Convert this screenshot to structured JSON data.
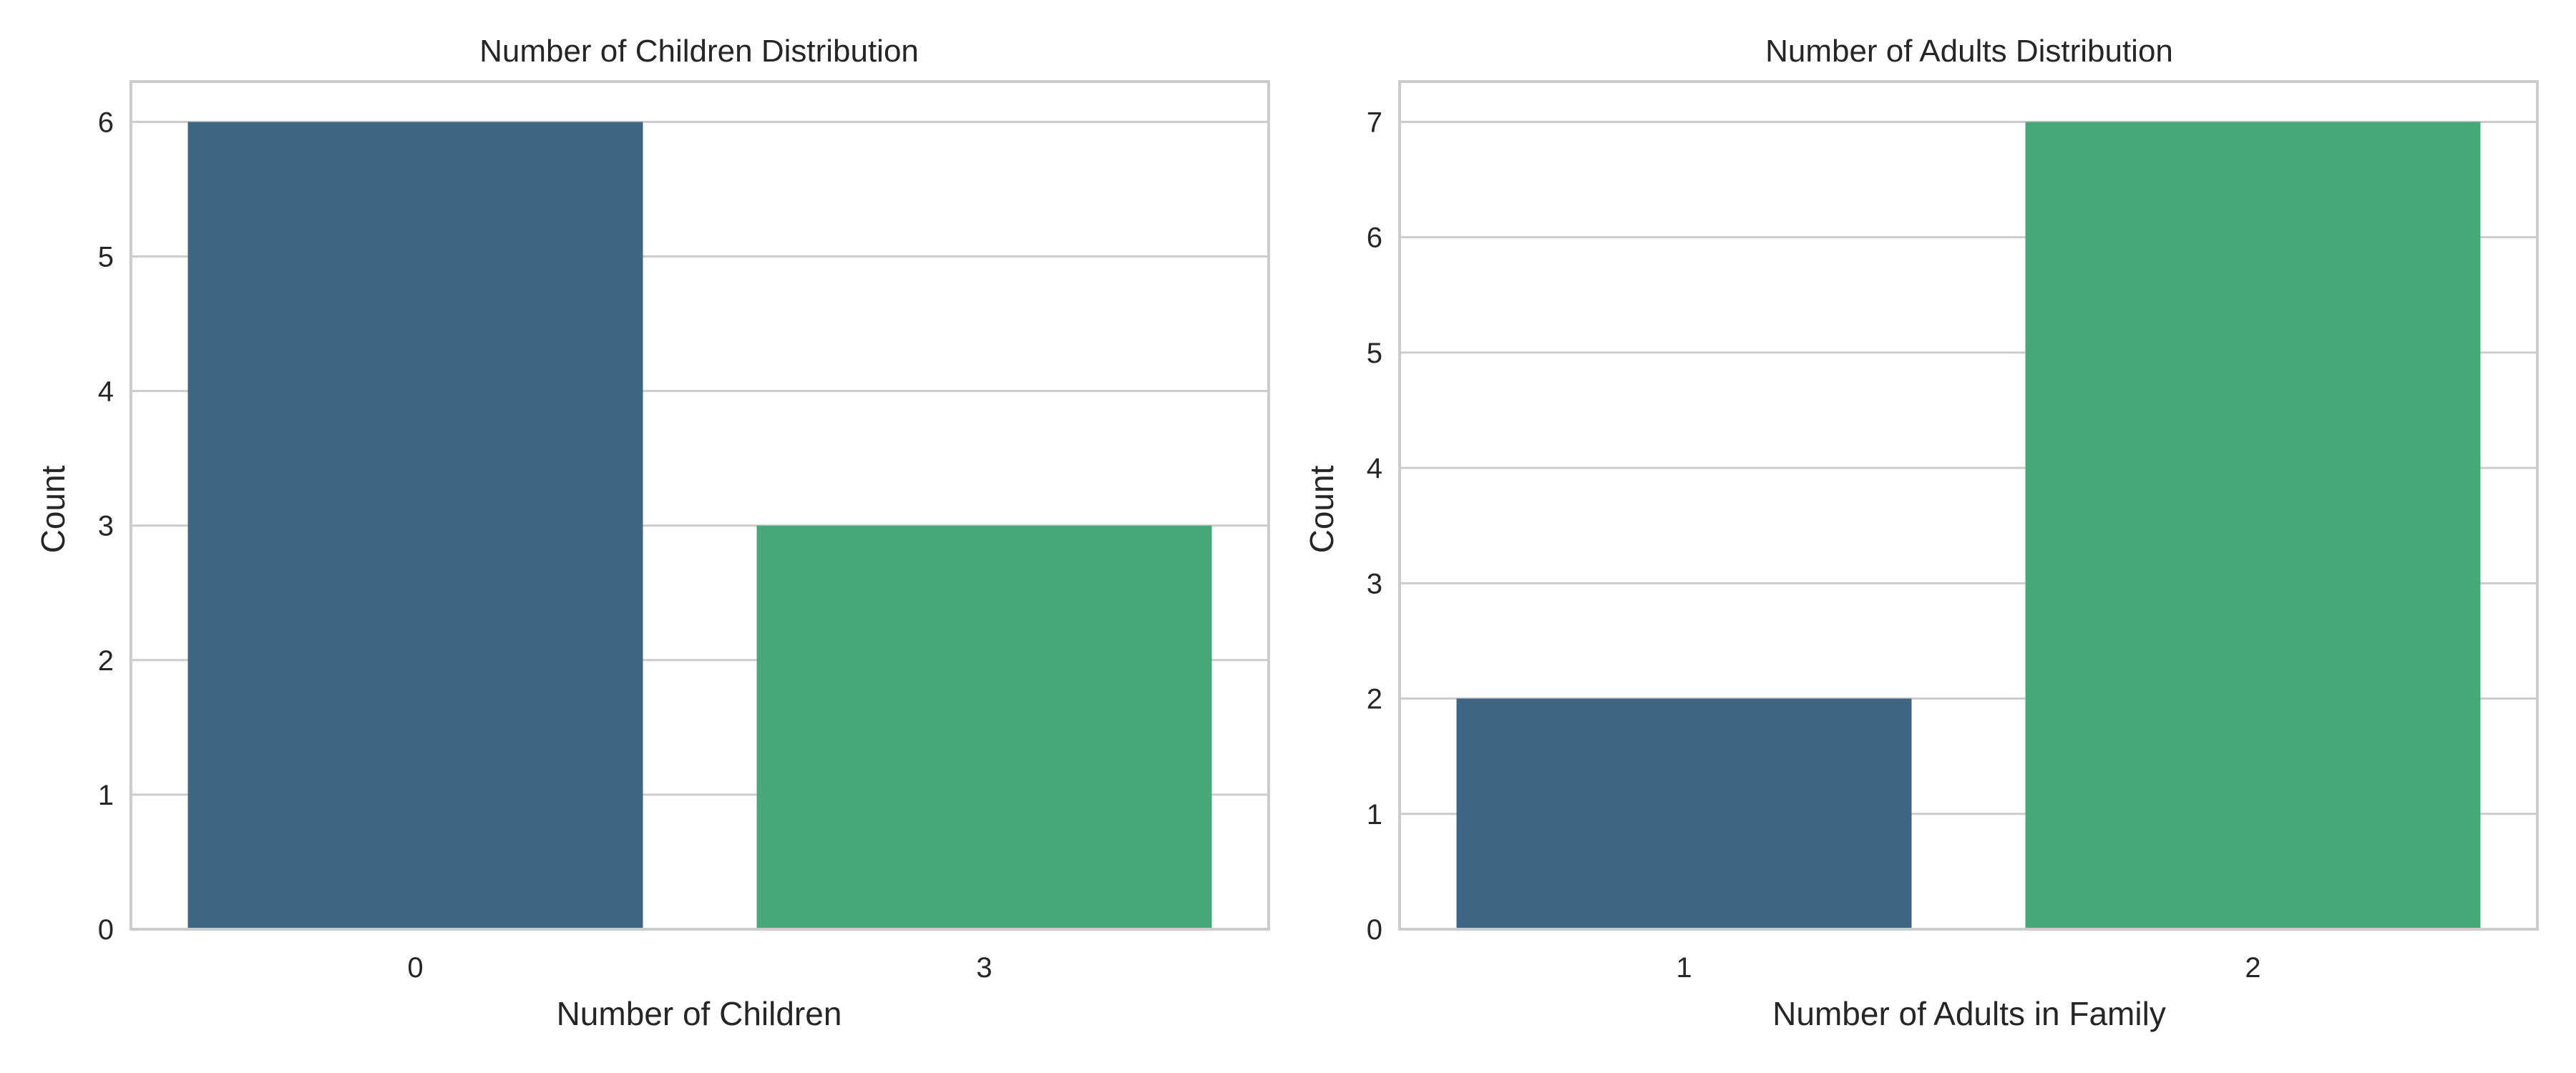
{
  "chart_data": [
    {
      "type": "bar",
      "title": "Number of Children Distribution",
      "xlabel": "Number of Children",
      "ylabel": "Count",
      "categories": [
        "0",
        "3"
      ],
      "values": [
        6,
        3
      ],
      "colors": [
        "#3e6682",
        "#47a878"
      ],
      "ylim": [
        0,
        6.3
      ],
      "yticks": [
        "0",
        "1",
        "2",
        "3",
        "4",
        "5",
        "6"
      ],
      "grid": "y",
      "legend": "none"
    },
    {
      "type": "bar",
      "title": "Number of Adults Distribution",
      "xlabel": "Number of Adults in Family",
      "ylabel": "Count",
      "categories": [
        "1",
        "2"
      ],
      "values": [
        2,
        7
      ],
      "colors": [
        "#3e6682",
        "#47a878"
      ],
      "ylim": [
        0,
        7.35
      ],
      "yticks": [
        "0",
        "1",
        "2",
        "3",
        "4",
        "5",
        "6",
        "7"
      ],
      "grid": "y",
      "legend": "none"
    }
  ],
  "style": {
    "grid_color": "#cccccc",
    "spine_color": "#cccccc",
    "text_color": "#262626"
  }
}
